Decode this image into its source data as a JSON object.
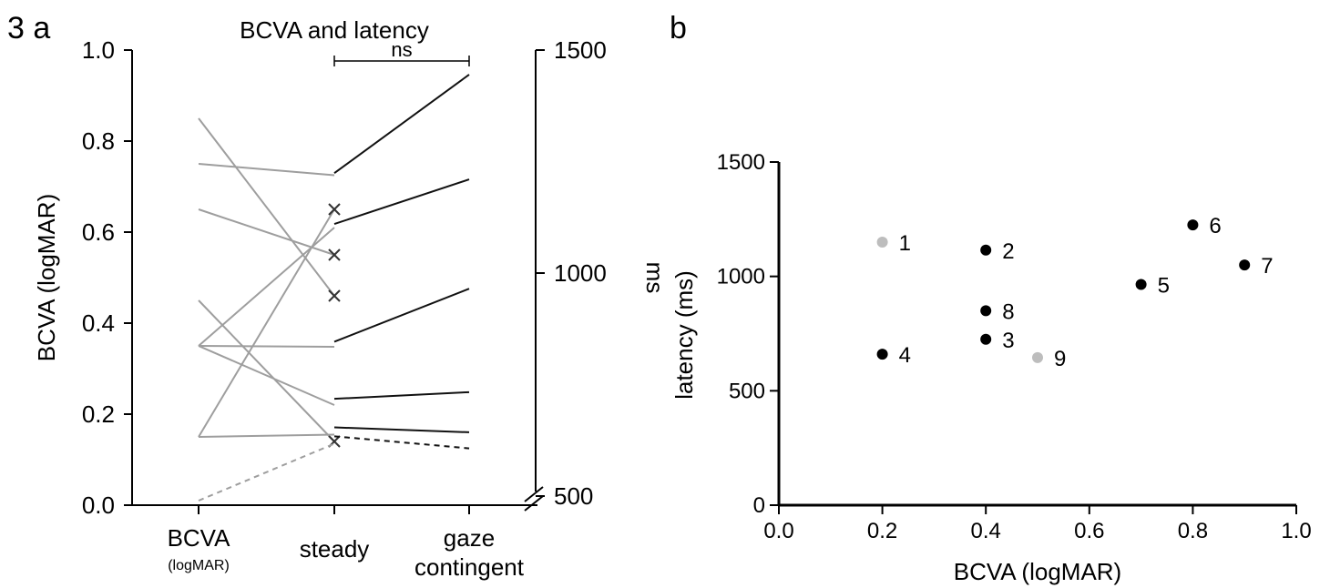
{
  "chart_data": [
    {
      "panel_label": "3 a",
      "type": "line",
      "title": "BCVA and latency",
      "categories": [
        "BCVA",
        "steady",
        "gaze contingent"
      ],
      "category_sublabels": [
        "(logMAR)",
        "",
        ""
      ],
      "ylabel": "BCVA (logMAR)",
      "ylim": [
        0,
        1
      ],
      "yticks": [
        "0.0",
        "0.2",
        "0.4",
        "0.6",
        "0.8",
        "1.0"
      ],
      "y2label": "ms",
      "y2lim": [
        500,
        1500
      ],
      "y2ticks": [
        "500",
        "1000",
        "1500"
      ],
      "significance": {
        "from": "steady",
        "to": "gaze contingent",
        "label": "ns"
      },
      "colors": {
        "bcva": "#9e9e9e",
        "latency": "#111111"
      },
      "series": [
        {
          "bcva": 0.85,
          "steady_bcva": 0.46,
          "marker": "x"
        },
        {
          "bcva": 0.75,
          "steady_bcva": 0.725,
          "steady_ms": 1224,
          "gaze_ms": 1445
        },
        {
          "bcva": 0.65,
          "steady_bcva": 0.55,
          "marker": "x"
        },
        {
          "bcva": 0.45,
          "steady_bcva": 0.14,
          "marker": "x"
        },
        {
          "bcva": 0.35,
          "steady_bcva": 0.61,
          "steady_ms": 1110,
          "gaze_ms": 1210
        },
        {
          "bcva": 0.35,
          "steady_bcva": 0.348,
          "steady_ms": 846,
          "gaze_ms": 965
        },
        {
          "bcva": 0.35,
          "steady_bcva": 0.22,
          "steady_ms": 718,
          "gaze_ms": 733
        },
        {
          "bcva": 0.15,
          "steady_bcva": 0.65,
          "marker": "x"
        },
        {
          "bcva": 0.15,
          "steady_bcva": 0.155,
          "steady_ms": 654,
          "gaze_ms": 643
        },
        {
          "bcva": 0.01,
          "steady_bcva": 0.135,
          "steady_ms": 634,
          "gaze_ms": 607,
          "dashed": true
        }
      ]
    },
    {
      "panel_label": "b",
      "type": "scatter",
      "xlabel": "BCVA (logMAR)",
      "ylabel": "latency (ms)",
      "xlim": [
        0,
        1
      ],
      "ylim": [
        0,
        1500
      ],
      "xticks": [
        "0.0",
        "0.2",
        "0.4",
        "0.6",
        "0.8",
        "1.0"
      ],
      "yticks": [
        "0",
        "500",
        "1000",
        "1500"
      ],
      "points": [
        {
          "label": "1",
          "x": 0.2,
          "y": 1150,
          "color": "#bdbdbd"
        },
        {
          "label": "2",
          "x": 0.4,
          "y": 1115,
          "color": "#000000"
        },
        {
          "label": "3",
          "x": 0.4,
          "y": 725,
          "color": "#000000"
        },
        {
          "label": "4",
          "x": 0.2,
          "y": 660,
          "color": "#000000"
        },
        {
          "label": "5",
          "x": 0.7,
          "y": 965,
          "color": "#000000"
        },
        {
          "label": "6",
          "x": 0.8,
          "y": 1225,
          "color": "#000000"
        },
        {
          "label": "7",
          "x": 0.9,
          "y": 1050,
          "color": "#000000"
        },
        {
          "label": "8",
          "x": 0.4,
          "y": 850,
          "color": "#000000"
        },
        {
          "label": "9",
          "x": 0.5,
          "y": 645,
          "color": "#bdbdbd"
        }
      ]
    }
  ]
}
